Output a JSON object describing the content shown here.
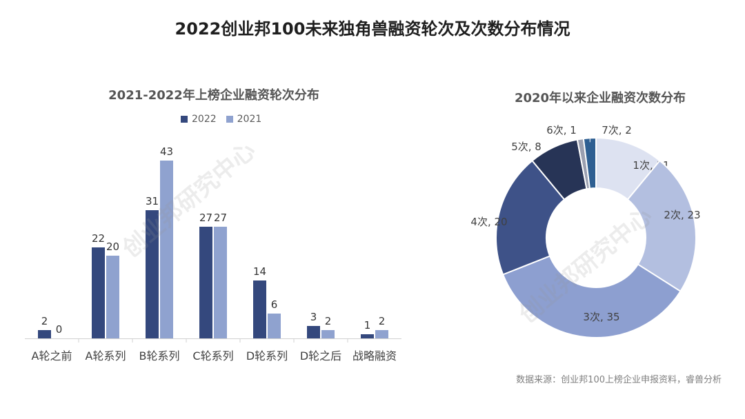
{
  "title": "2022创业邦100未来独角兽融资轮次及次数分布情况",
  "source": "数据来源：创业邦100上榜企业申报资料，睿兽分析",
  "watermark": "创业邦研究中心",
  "colors": {
    "s2022": "#34487d",
    "s2021": "#8fa2cf",
    "donut": [
      "#dde2f1",
      "#b3bfe0",
      "#8d9fd0",
      "#3e5288",
      "#273456",
      "#9a9fb0",
      "#2e5f92"
    ]
  },
  "chart_data": [
    {
      "type": "bar",
      "title": "2021-2022年上榜企业融资轮次分布",
      "categories": [
        "A轮之前",
        "A轮系列",
        "B轮系列",
        "C轮系列",
        "D轮系列",
        "D轮之后",
        "战略融资"
      ],
      "series": [
        {
          "name": "2022",
          "values": [
            2,
            22,
            31,
            27,
            14,
            3,
            1
          ]
        },
        {
          "name": "2021",
          "values": [
            0,
            20,
            43,
            27,
            6,
            2,
            2
          ]
        }
      ],
      "ylim": [
        0,
        45
      ],
      "legend": "top-center"
    },
    {
      "type": "pie",
      "title": "2020年以来企业融资次数分布",
      "labels": [
        "1次",
        "2次",
        "3次",
        "4次",
        "5次",
        "6次",
        "7次"
      ],
      "values": [
        11,
        23,
        35,
        20,
        8,
        1,
        2
      ]
    }
  ]
}
